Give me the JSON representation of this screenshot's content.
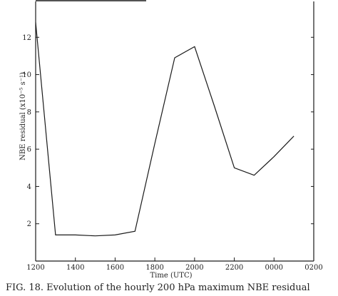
{
  "chart_data": {
    "type": "line",
    "title": "",
    "xlabel": "Time (UTC)",
    "ylabel": "NBE residual (x10⁻⁵ s⁻¹)",
    "x_tick_labels": [
      "1200",
      "1400",
      "1600",
      "1800",
      "2000",
      "2200",
      "0000",
      "0200"
    ],
    "y_tick_labels": [
      "2",
      "4",
      "6",
      "8",
      "10",
      "12"
    ],
    "xlim": [
      0,
      14
    ],
    "ylim": [
      0,
      14
    ],
    "grid": false,
    "series": [
      {
        "x": [
          0,
          1,
          2,
          3,
          4,
          5,
          6,
          7,
          8,
          9,
          10,
          11,
          12,
          13
        ],
        "values": [
          12.8,
          1.4,
          1.4,
          1.35,
          1.4,
          1.6,
          6.3,
          10.9,
          11.5,
          8.3,
          5.0,
          4.6,
          5.6,
          6.7
        ]
      }
    ]
  },
  "caption": "FIG. 18. Evolution of the hourly 200 hPa maximum NBE residual"
}
